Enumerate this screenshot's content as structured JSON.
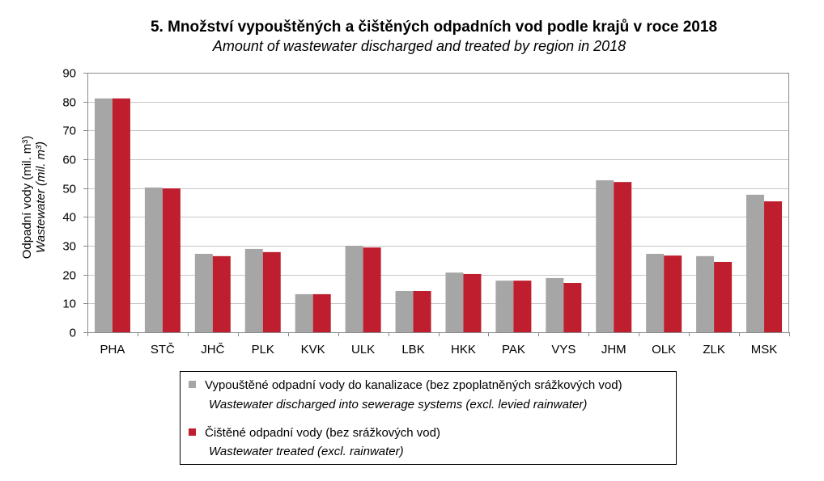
{
  "chart_data": {
    "type": "bar",
    "title": "5. Množství vypouštěných a čištěných odpadních vod podle krajů v roce 2018",
    "subtitle": "Amount of wastewater discharged and treated by region in 2018",
    "xlabel": "",
    "ylabel": "Odpadní vody (mil. m³)",
    "ylabel_en": "Wastewater (mil. m³)",
    "ylim": [
      0,
      90
    ],
    "yticks": [
      0,
      10,
      20,
      30,
      40,
      50,
      60,
      70,
      80,
      90
    ],
    "grid": true,
    "categories": [
      "PHA",
      "STČ",
      "JHČ",
      "PLK",
      "KVK",
      "ULK",
      "LBK",
      "HKK",
      "PAK",
      "VYS",
      "JHM",
      "OLK",
      "ZLK",
      "MSK"
    ],
    "series": [
      {
        "name": "Vypouštěné odpadní vody do kanalizace (bez zpoplatněných srážkových vod)",
        "name_en": "Wastewater discharged into sewerage systems (excl. levied rainwater)",
        "color": "#a6a6a6",
        "values": [
          81.1,
          50.2,
          27.2,
          28.9,
          13.2,
          30.0,
          14.3,
          20.7,
          17.9,
          18.8,
          52.7,
          27.2,
          26.4,
          47.7
        ]
      },
      {
        "name": "Čištěné odpadní vody (bez srážkových vod)",
        "name_en": "Wastewater treated (excl. rainwater)",
        "color": "#be1e2d",
        "values": [
          81.1,
          49.9,
          26.4,
          27.8,
          13.2,
          29.4,
          14.3,
          20.2,
          17.9,
          17.1,
          52.1,
          26.6,
          24.4,
          45.4
        ]
      }
    ]
  }
}
